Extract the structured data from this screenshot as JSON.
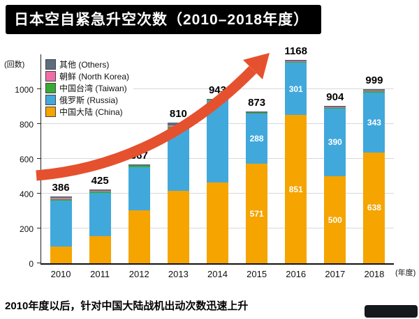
{
  "title": "日本空自紧急升空次数（2010–2018年度）",
  "footer": "2010年度以后，针对中国大陆战机出动次数迅速上升",
  "axis": {
    "y_unit": "(回数)",
    "x_unit": "(年度)"
  },
  "legend": [
    {
      "label": "其他 (Others)",
      "color": "#5d6d7e"
    },
    {
      "label": "朝鲜 (North Korea)",
      "color": "#ef6ea8"
    },
    {
      "label": "中国台湾 (Taiwan)",
      "color": "#3aa935"
    },
    {
      "label": "俄罗斯 (Russia)",
      "color": "#41a8dc"
    },
    {
      "label": "中国大陆 (China)",
      "color": "#f5a400"
    }
  ],
  "arrow_color": "#e5512e",
  "chart_data": {
    "type": "bar",
    "stacked": true,
    "title": "日本空自紧急升空次数（2010–2018年度）",
    "categories": [
      "2010",
      "2011",
      "2012",
      "2013",
      "2014",
      "2015",
      "2016",
      "2017",
      "2018"
    ],
    "totals": [
      386,
      425,
      567,
      810,
      943,
      873,
      1168,
      904,
      999
    ],
    "series_order": "bottom-to-top",
    "series": [
      {
        "name": "中国大陆 (China)",
        "color": "#f5a400",
        "values": [
          96,
          156,
          306,
          415,
          464,
          571,
          851,
          500,
          638
        ],
        "labels": [
          null,
          null,
          null,
          null,
          null,
          "571",
          "851",
          "500",
          "638"
        ]
      },
      {
        "name": "俄罗斯 (Russia)",
        "color": "#41a8dc",
        "values": [
          264,
          247,
          248,
          359,
          473,
          288,
          301,
          390,
          343
        ],
        "labels": [
          null,
          null,
          null,
          null,
          null,
          "288",
          "301",
          "390",
          "343"
        ]
      },
      {
        "name": "中国台湾 (Taiwan)",
        "color": "#3aa935",
        "values": [
          10,
          8,
          5,
          12,
          2,
          4,
          6,
          4,
          6
        ]
      },
      {
        "name": "朝鲜 (North Korea)",
        "color": "#ef6ea8",
        "values": [
          6,
          4,
          3,
          8,
          1,
          2,
          2,
          2,
          4
        ]
      },
      {
        "name": "其他 (Others)",
        "color": "#5d6d7e",
        "values": [
          10,
          10,
          5,
          16,
          3,
          8,
          8,
          8,
          8
        ]
      }
    ],
    "y_ticks": [
      0,
      200,
      400,
      600,
      800,
      1000
    ],
    "ylim": [
      0,
      1200
    ],
    "ylabel": "(回数)",
    "xlabel": "(年度)",
    "grid": true,
    "legend_position": "top-left",
    "annotation": "upward trend arrow from 2010 toward 2016 peak"
  }
}
